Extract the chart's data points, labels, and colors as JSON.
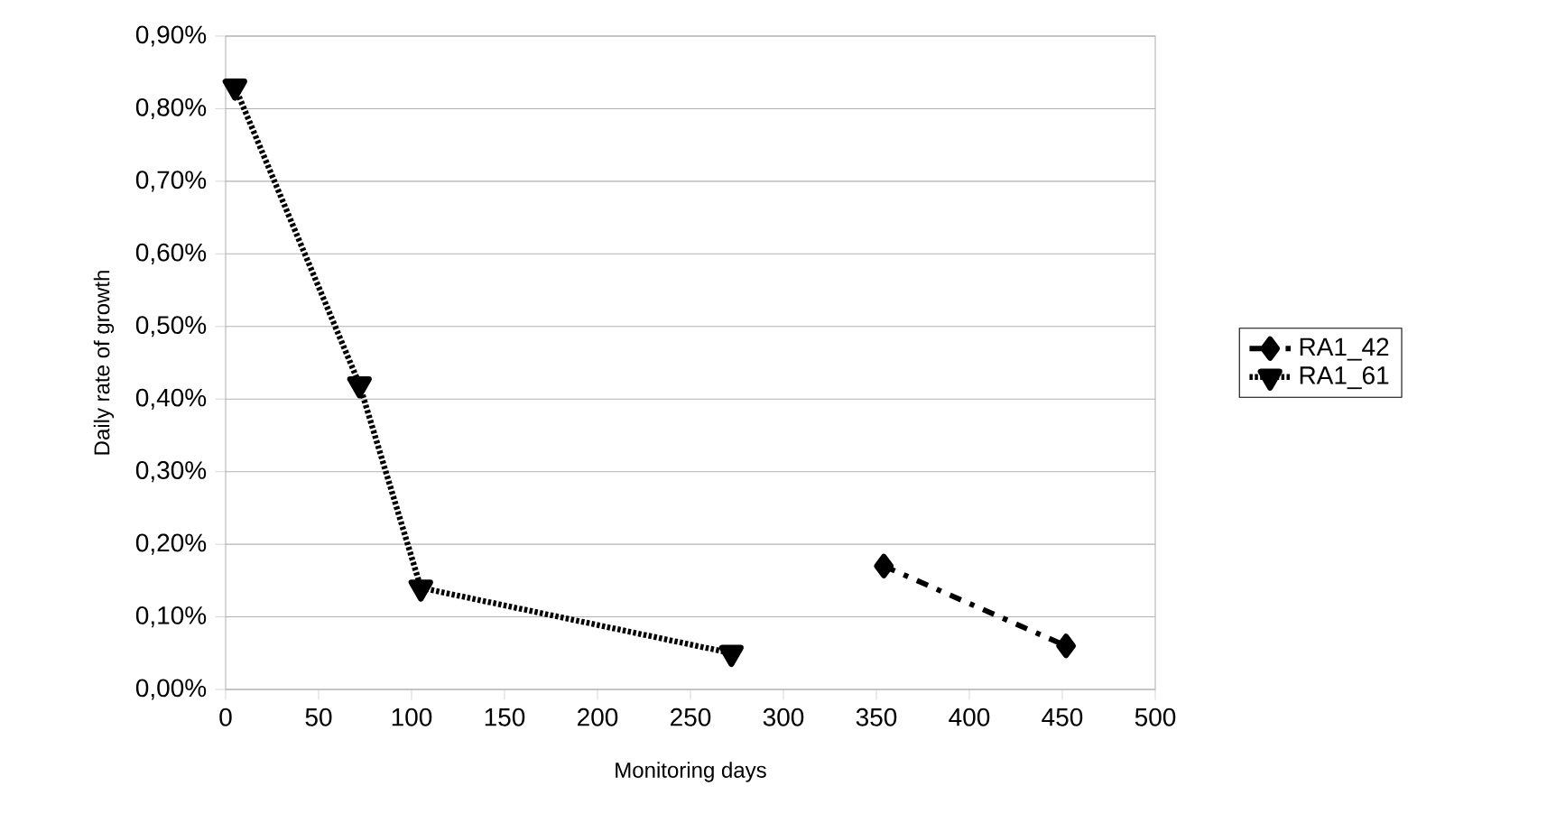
{
  "chart_data": {
    "type": "line",
    "xlabel": "Monitoring days",
    "ylabel": "Daily rate of growth",
    "series": [
      {
        "name": "RA1_42",
        "color": "#000000",
        "x": [
          354,
          452
        ],
        "values": [
          0.17,
          0.06
        ],
        "marker": "diamond",
        "line_style": "dashed"
      },
      {
        "name": "RA1_61",
        "color": "#000000",
        "x": [
          5,
          72,
          105,
          272
        ],
        "values": [
          0.83,
          0.42,
          0.14,
          0.05
        ],
        "marker": "triangle",
        "line_style": "dotted"
      }
    ],
    "xlim": [
      0,
      500
    ],
    "xticks": [
      0,
      50,
      100,
      150,
      200,
      250,
      300,
      350,
      400,
      450,
      500
    ],
    "ylim": [
      0,
      0.9
    ],
    "yticks": [
      {
        "value": 0,
        "label": "0,00%"
      },
      {
        "value": 0.1,
        "label": "0,10%"
      },
      {
        "value": 0.2,
        "label": "0,20%"
      },
      {
        "value": 0.3,
        "label": "0,30%"
      },
      {
        "value": 0.4,
        "label": "0,40%"
      },
      {
        "value": 0.5,
        "label": "0,50%"
      },
      {
        "value": 0.6,
        "label": "0,60%"
      },
      {
        "value": 0.7,
        "label": "0,70%"
      },
      {
        "value": 0.8,
        "label": "0,80%"
      },
      {
        "value": 0.9,
        "label": "0,90%"
      }
    ],
    "grid": "y",
    "legend": "right"
  }
}
